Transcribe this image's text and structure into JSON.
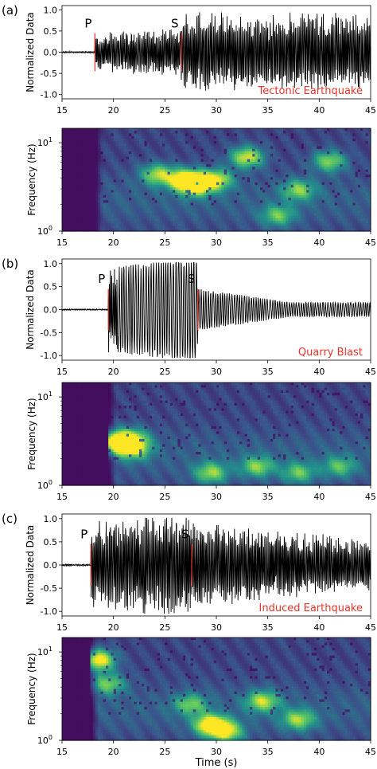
{
  "figure": {
    "xlabel": "Time (s)",
    "colors": {
      "waveform": "#000000",
      "marker": "#e8342a",
      "annotation": "#e8342a",
      "axis": "#000000",
      "spec_low": "#440154",
      "spec_mid": "#21918c",
      "spec_high": "#fde725"
    }
  },
  "chart_data": [
    {
      "panel": "(a)",
      "type": "line",
      "ylabel": "Normalized Data",
      "xlim": [
        15,
        45
      ],
      "ylim": [
        -1.1,
        1.1
      ],
      "xticks": [
        15,
        20,
        25,
        30,
        35,
        40,
        45
      ],
      "xtick_labels": [
        "15",
        "20",
        "25",
        "30",
        "35",
        "40",
        "45"
      ],
      "yticks": [
        1.0,
        0.5,
        0.0,
        -0.5,
        -1.0
      ],
      "ytick_labels": [
        "1.0",
        "0.5",
        "0.0",
        "-0.5",
        "-1.0"
      ],
      "annotation": "Tectonic Earthquake",
      "p_pick": {
        "label": "P",
        "x": 18.2
      },
      "s_pick": {
        "label": "S",
        "x": 26.6
      },
      "signal": {
        "onset": 18.2,
        "s_arrival": 26.6,
        "amp_pre": 0.02,
        "amp_p": 0.45,
        "amp_s": 0.95,
        "decay": 0.0
      },
      "spectrogram": {
        "type": "heatmap",
        "ylabel": "Frequency (Hz)",
        "yscale": "log",
        "ytick_labels": [
          "10^1",
          "10^0"
        ],
        "xlim": [
          15,
          45
        ],
        "onset": 18.2,
        "hotspots": [
          [
            24.3,
            0.55,
            0.65
          ],
          [
            27.0,
            0.5,
            0.85
          ],
          [
            28.0,
            0.45,
            0.9
          ],
          [
            30.0,
            0.5,
            0.7
          ],
          [
            33.0,
            0.72,
            0.75
          ],
          [
            41.0,
            0.68,
            0.6
          ],
          [
            38.0,
            0.4,
            0.55
          ],
          [
            36.0,
            0.15,
            0.5
          ]
        ]
      }
    },
    {
      "panel": "(b)",
      "type": "line",
      "ylabel": "Normalized Data",
      "xlim": [
        15,
        45
      ],
      "ylim": [
        -1.1,
        1.1
      ],
      "xticks": [
        15,
        20,
        25,
        30,
        35,
        40,
        45
      ],
      "xtick_labels": [
        "15",
        "20",
        "25",
        "30",
        "35",
        "40",
        "45"
      ],
      "yticks": [
        1.0,
        0.5,
        0.0,
        -0.5,
        -1.0
      ],
      "ytick_labels": [
        "1.0",
        "0.5",
        "0.0",
        "-0.5",
        "-1.0"
      ],
      "annotation": "Quarry Blast",
      "p_pick": {
        "label": "P",
        "x": 19.5
      },
      "s_pick": {
        "label": "S",
        "x": 28.2
      },
      "signal": {
        "onset": 19.5,
        "s_arrival": 28.2,
        "amp_pre": 0.015,
        "amp_p": 0.9,
        "amp_s": 0.45,
        "decay": 1.2
      },
      "spectrogram": {
        "type": "heatmap",
        "ylabel": "Frequency (Hz)",
        "yscale": "log",
        "ytick_labels": [
          "10^1",
          "10^0"
        ],
        "xlim": [
          15,
          45
        ],
        "onset": 19.5,
        "hotspots": [
          [
            20.2,
            0.42,
            0.95
          ],
          [
            21.8,
            0.45,
            0.6
          ],
          [
            22.0,
            0.35,
            0.6
          ],
          [
            29.5,
            0.12,
            0.6
          ],
          [
            34.0,
            0.18,
            0.55
          ],
          [
            38.0,
            0.12,
            0.5
          ],
          [
            42.0,
            0.18,
            0.45
          ]
        ]
      }
    },
    {
      "panel": "(c)",
      "type": "line",
      "ylabel": "Normalized Data",
      "xlim": [
        15,
        45
      ],
      "ylim": [
        -1.1,
        1.1
      ],
      "xticks": [
        15,
        20,
        25,
        30,
        35,
        40,
        45
      ],
      "xtick_labels": [
        "15",
        "20",
        "25",
        "30",
        "35",
        "40",
        "45"
      ],
      "yticks": [
        1.0,
        0.5,
        0.0,
        -0.5,
        -1.0
      ],
      "ytick_labels": [
        "1.0",
        "0.5",
        "0.0",
        "-0.5",
        "-1.0"
      ],
      "annotation": "Induced Earthquake",
      "p_pick": {
        "label": "P",
        "x": 17.8
      },
      "s_pick": {
        "label": "S",
        "x": 27.6
      },
      "signal": {
        "onset": 17.8,
        "s_arrival": 27.6,
        "amp_pre": 0.02,
        "amp_p": 0.95,
        "amp_s": 0.95,
        "decay": 0.4
      },
      "spectrogram": {
        "type": "heatmap",
        "ylabel": "Frequency (Hz)",
        "yscale": "log",
        "ytick_labels": [
          "10^1",
          "10^0"
        ],
        "xlim": [
          15,
          45
        ],
        "onset": 17.8,
        "hotspots": [
          [
            18.5,
            0.78,
            0.9
          ],
          [
            19.5,
            0.55,
            0.55
          ],
          [
            29.5,
            0.15,
            0.95
          ],
          [
            31.0,
            0.08,
            0.7
          ],
          [
            34.5,
            0.38,
            0.65
          ],
          [
            38.0,
            0.2,
            0.6
          ],
          [
            27.5,
            0.35,
            0.5
          ]
        ]
      }
    }
  ]
}
